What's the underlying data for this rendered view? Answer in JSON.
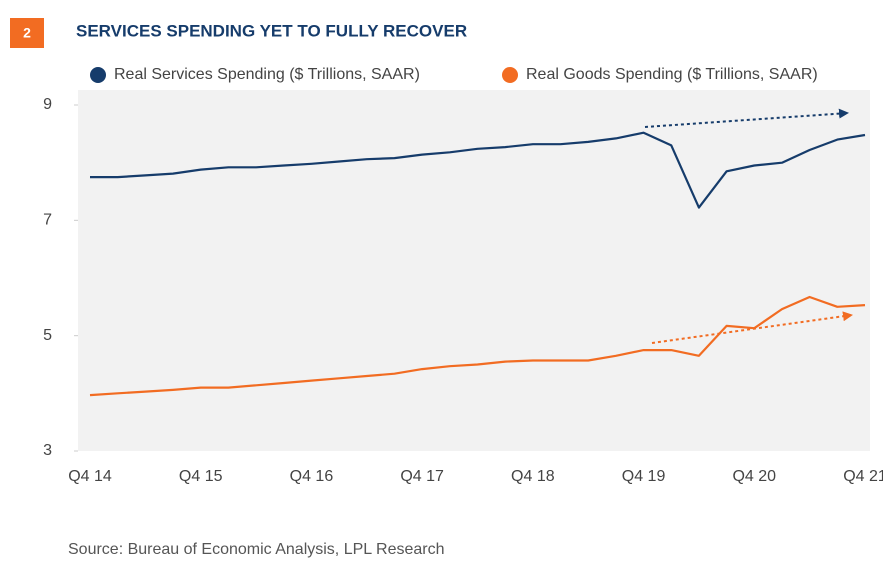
{
  "badge": "2",
  "chart_data": {
    "type": "line",
    "title": "SERVICES SPENDING YET TO FULLY RECOVER",
    "categories": [
      "Q4 14",
      null,
      null,
      null,
      "Q4 15",
      null,
      null,
      null,
      "Q4 16",
      null,
      null,
      null,
      "Q4 17",
      null,
      null,
      null,
      "Q4 18",
      null,
      null,
      null,
      "Q4 19",
      null,
      null,
      null,
      "Q4 20",
      null,
      null,
      null,
      "Q4 21"
    ],
    "series": [
      {
        "name": "Real Services Spending ($ Trillions, SAAR)",
        "color": "#163c6b",
        "values": [
          7.75,
          7.75,
          7.78,
          7.81,
          7.88,
          7.92,
          7.92,
          7.95,
          7.98,
          8.02,
          8.06,
          8.08,
          8.14,
          8.18,
          8.24,
          8.27,
          8.32,
          8.32,
          8.36,
          8.42,
          8.52,
          8.3,
          7.22,
          7.85,
          7.95,
          8.0,
          8.22,
          8.4,
          8.48
        ]
      },
      {
        "name": "Real Goods Spending ($ Trillions, SAAR)",
        "color": "#f26c22",
        "values": [
          3.97,
          4.0,
          4.03,
          4.06,
          4.1,
          4.1,
          4.14,
          4.18,
          4.22,
          4.26,
          4.3,
          4.34,
          4.42,
          4.47,
          4.5,
          4.55,
          4.57,
          4.57,
          4.57,
          4.65,
          4.75,
          4.75,
          4.65,
          5.17,
          5.13,
          5.46,
          5.67,
          5.5,
          5.53
        ]
      }
    ],
    "ylim": [
      3,
      9
    ],
    "yticks": [
      3,
      5,
      7,
      9
    ],
    "grid": false,
    "source": "Source: Bureau of Economic Analysis, LPL Research"
  }
}
